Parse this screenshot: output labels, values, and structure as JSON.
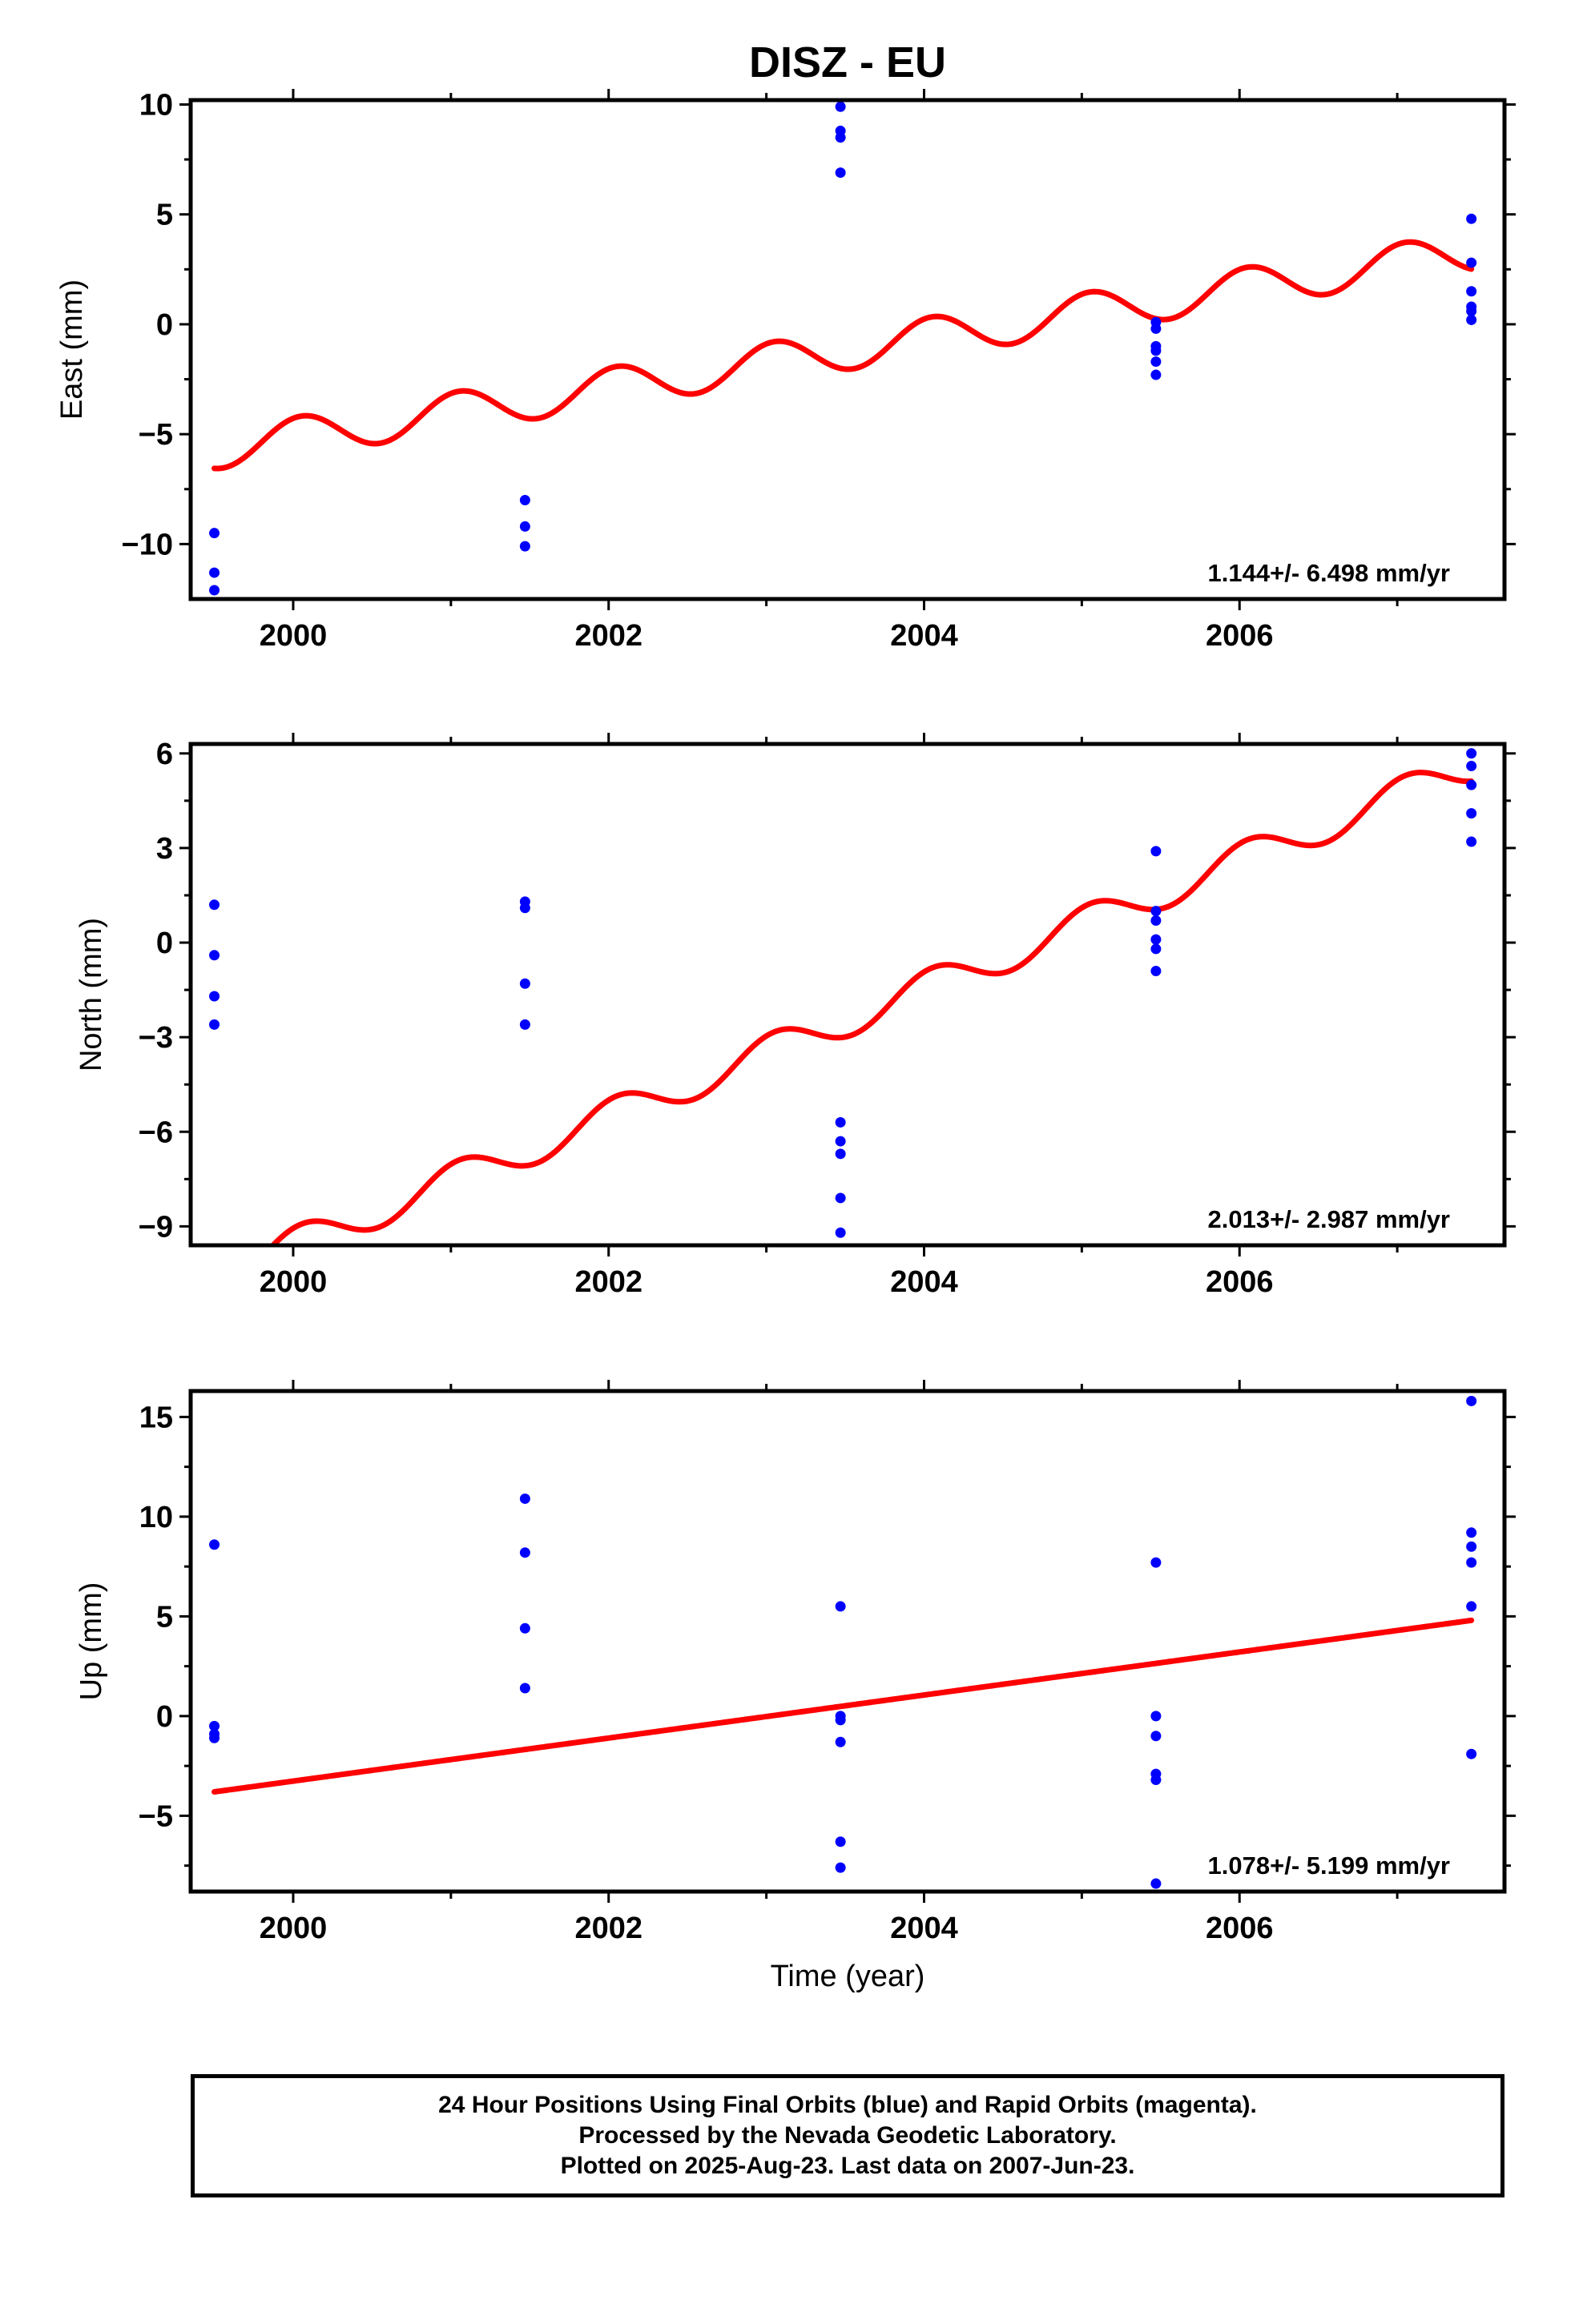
{
  "title": "DISZ - EU",
  "colors": {
    "axis": "#000000",
    "final_points": "#0000ff",
    "model_line": "#ff0000"
  },
  "caption": {
    "line1": "24 Hour Positions Using Final Orbits (blue) and Rapid Orbits (magenta).",
    "line2": "Processed by the Nevada Geodetic Laboratory.",
    "line3": "Plotted on 2025-Aug-23. Last data on 2007-Jun-23."
  },
  "chart_data": [
    {
      "type": "scatter",
      "id": "east",
      "ylabel": "East (mm)",
      "xlabel": "",
      "xlim": [
        1999.35,
        2007.68
      ],
      "ylim": [
        -12.5,
        10.2
      ],
      "xticks": [
        2000,
        2002,
        2004,
        2006
      ],
      "yticks": [
        -10,
        -5,
        0,
        5,
        10
      ],
      "y_tick_labels": [
        "−10",
        "−5",
        "0",
        "5",
        "10"
      ],
      "rate_label": "1.144+/- 6.498 mm/yr",
      "points": [
        [
          1999.5,
          -9.5
        ],
        [
          1999.5,
          -11.3
        ],
        [
          1999.5,
          -12.1
        ],
        [
          2001.47,
          -8.0
        ],
        [
          2001.47,
          -9.2
        ],
        [
          2001.47,
          -10.1
        ],
        [
          2003.47,
          9.9
        ],
        [
          2003.47,
          8.8
        ],
        [
          2003.47,
          8.5
        ],
        [
          2003.47,
          6.9
        ],
        [
          2005.47,
          0.1
        ],
        [
          2005.47,
          -0.2
        ],
        [
          2005.47,
          -1.0
        ],
        [
          2005.47,
          -1.2
        ],
        [
          2005.47,
          -1.7
        ],
        [
          2005.47,
          -2.3
        ],
        [
          2007.47,
          4.8
        ],
        [
          2007.47,
          2.8
        ],
        [
          2007.47,
          1.5
        ],
        [
          2007.47,
          0.8
        ],
        [
          2007.47,
          0.6
        ],
        [
          2007.47,
          0.2
        ]
      ],
      "model": {
        "t0": 1999.5,
        "t1": 2007.47,
        "y_start": -5.7,
        "y_end": 3.3,
        "annual_amp": 0.9,
        "phase_year": 1999.55
      }
    },
    {
      "type": "scatter",
      "id": "north",
      "ylabel": "North (mm)",
      "xlabel": "",
      "xlim": [
        1999.35,
        2007.68
      ],
      "ylim": [
        -9.6,
        6.3
      ],
      "xticks": [
        2000,
        2002,
        2004,
        2006
      ],
      "yticks": [
        -9,
        -6,
        -3,
        0,
        3,
        6
      ],
      "y_tick_labels": [
        "−9",
        "−6",
        "−3",
        "0",
        "3",
        "6"
      ],
      "rate_label": "2.013+/- 2.987 mm/yr",
      "points": [
        [
          1999.5,
          1.2
        ],
        [
          1999.5,
          -0.4
        ],
        [
          1999.5,
          -1.7
        ],
        [
          1999.5,
          -2.6
        ],
        [
          2001.47,
          1.3
        ],
        [
          2001.47,
          1.1
        ],
        [
          2001.47,
          -1.3
        ],
        [
          2001.47,
          -2.6
        ],
        [
          2003.47,
          -5.7
        ],
        [
          2003.47,
          -6.3
        ],
        [
          2003.47,
          -6.7
        ],
        [
          2003.47,
          -8.1
        ],
        [
          2003.47,
          -9.2
        ],
        [
          2005.47,
          2.9
        ],
        [
          2005.47,
          1.0
        ],
        [
          2005.47,
          0.7
        ],
        [
          2005.47,
          0.1
        ],
        [
          2005.47,
          -0.2
        ],
        [
          2005.47,
          -0.9
        ],
        [
          2007.47,
          6.0
        ],
        [
          2007.47,
          5.6
        ],
        [
          2007.47,
          5.0
        ],
        [
          2007.47,
          4.1
        ],
        [
          2007.47,
          3.2
        ]
      ],
      "model": {
        "t0": 1999.5,
        "t1": 2007.47,
        "y_start": -10.6,
        "y_end": 5.6,
        "annual_amp": 0.55,
        "phase_year": 1999.55
      }
    },
    {
      "type": "scatter",
      "id": "up",
      "ylabel": "Up (mm)",
      "xlabel": "Time (year)",
      "xlim": [
        1999.35,
        2007.68
      ],
      "ylim": [
        -8.8,
        16.3
      ],
      "xticks": [
        2000,
        2002,
        2004,
        2006
      ],
      "yticks": [
        -5,
        0,
        5,
        10,
        15
      ],
      "y_tick_labels": [
        "−5",
        "0",
        "5",
        "10",
        "15"
      ],
      "rate_label": "1.078+/- 5.199 mm/yr",
      "points": [
        [
          1999.5,
          8.6
        ],
        [
          1999.5,
          -0.5
        ],
        [
          1999.5,
          -0.9
        ],
        [
          1999.5,
          -1.1
        ],
        [
          2001.47,
          10.9
        ],
        [
          2001.47,
          8.2
        ],
        [
          2001.47,
          4.4
        ],
        [
          2001.47,
          1.4
        ],
        [
          2003.47,
          5.5
        ],
        [
          2003.47,
          0.0
        ],
        [
          2003.47,
          -0.2
        ],
        [
          2003.47,
          -1.3
        ],
        [
          2003.47,
          -6.3
        ],
        [
          2003.47,
          -7.6
        ],
        [
          2005.47,
          7.7
        ],
        [
          2005.47,
          0.0
        ],
        [
          2005.47,
          -1.0
        ],
        [
          2005.47,
          -2.9
        ],
        [
          2005.47,
          -3.2
        ],
        [
          2005.47,
          -8.4
        ],
        [
          2007.47,
          15.8
        ],
        [
          2007.47,
          9.2
        ],
        [
          2007.47,
          8.5
        ],
        [
          2007.47,
          7.7
        ],
        [
          2007.47,
          5.5
        ],
        [
          2007.47,
          -1.9
        ]
      ],
      "model": {
        "t0": 1999.5,
        "t1": 2007.47,
        "y_start": -3.8,
        "y_end": 4.8,
        "annual_amp": 0.0,
        "phase_year": 1999.55
      }
    }
  ]
}
